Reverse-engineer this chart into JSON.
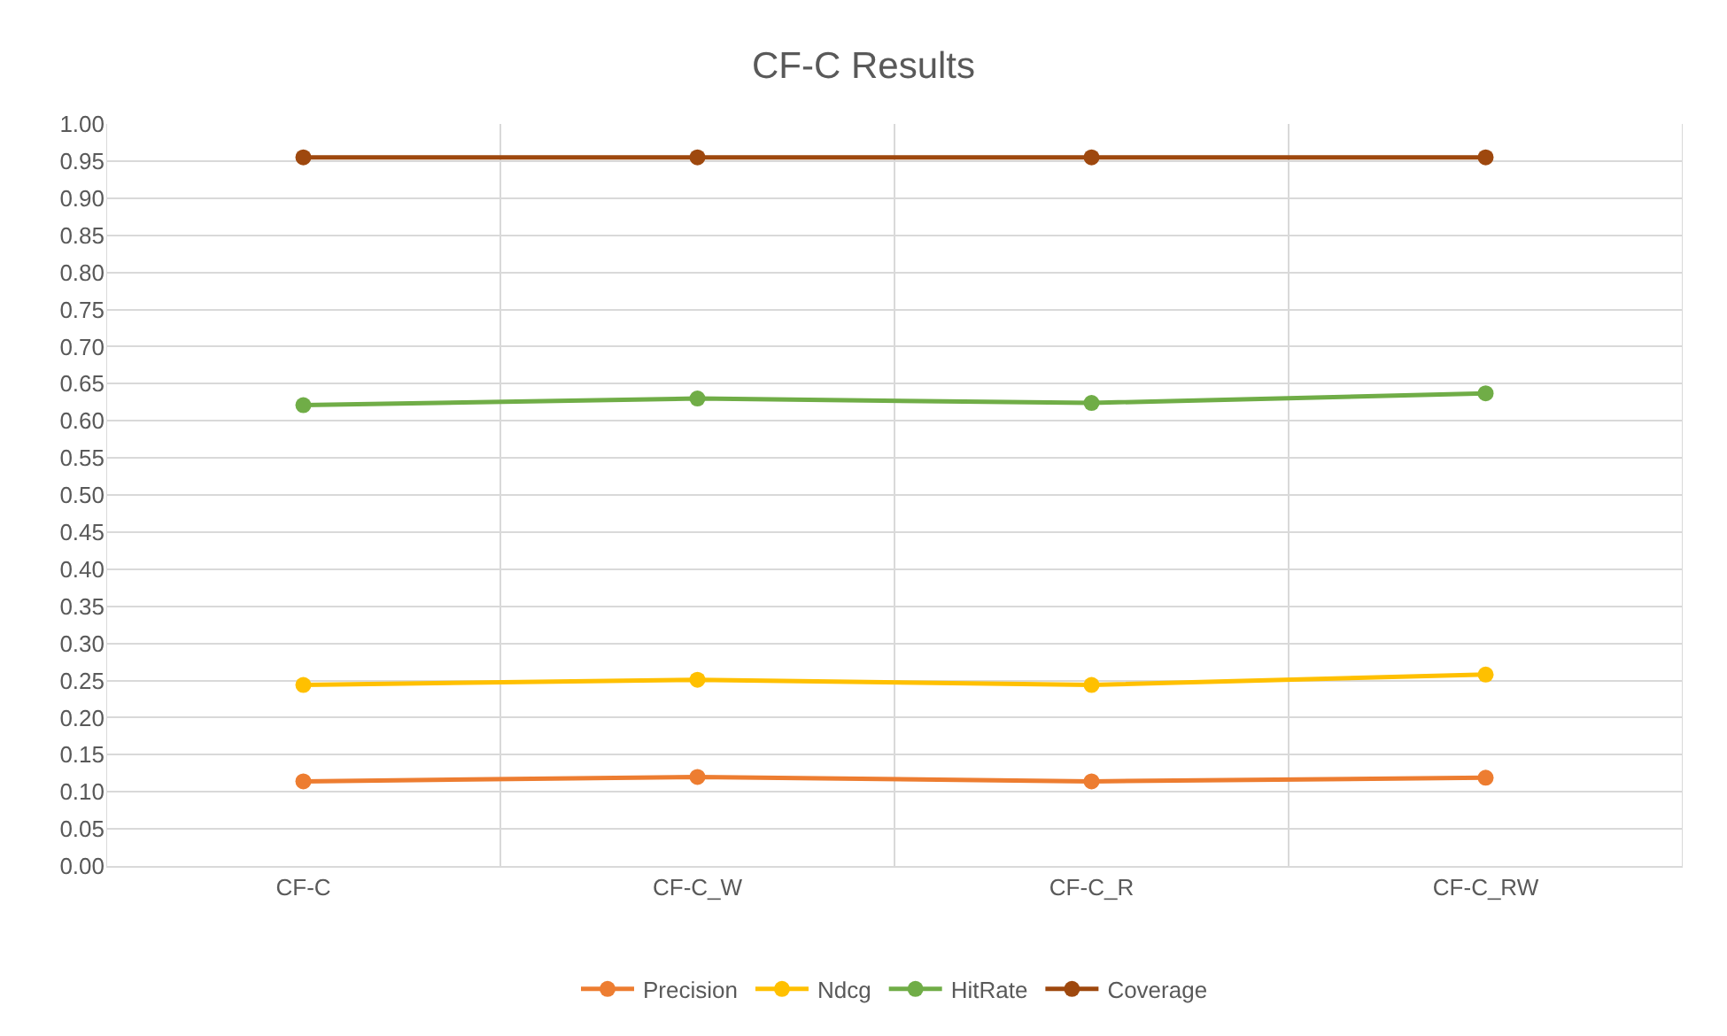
{
  "chart_data": {
    "type": "line",
    "title": "CF-C Results",
    "categories": [
      "CF-C",
      "CF-C_W",
      "CF-C_R",
      "CF-C_RW"
    ],
    "series": [
      {
        "name": "Precision",
        "color": "#ed7d31",
        "values": [
          0.114,
          0.12,
          0.114,
          0.119
        ]
      },
      {
        "name": "Ndcg",
        "color": "#ffc000",
        "values": [
          0.244,
          0.251,
          0.244,
          0.258
        ]
      },
      {
        "name": "HitRate",
        "color": "#70ad47",
        "values": [
          0.621,
          0.63,
          0.624,
          0.637
        ]
      },
      {
        "name": "Coverage",
        "color": "#9e480e",
        "values": [
          0.955,
          0.955,
          0.955,
          0.955
        ]
      }
    ],
    "ylim": [
      0,
      1
    ],
    "yticks": [
      {
        "value": 0,
        "label": "0.00"
      },
      0.05,
      {
        "value": 0.1,
        "label": "0.10"
      },
      0.15,
      {
        "value": 0.2,
        "label": "0.20"
      },
      0.25,
      {
        "value": 0.3,
        "label": "0.30"
      },
      0.35,
      {
        "value": 0.4,
        "label": "0.40"
      },
      0.45,
      {
        "value": 0.5,
        "label": "0.50"
      },
      0.55,
      {
        "value": 0.6,
        "label": "0.60"
      },
      0.65,
      {
        "value": 0.7,
        "label": "0.70"
      },
      0.75,
      {
        "value": 0.8,
        "label": "0.80"
      },
      0.85,
      {
        "value": 0.9,
        "label": "0.90"
      },
      0.95,
      {
        "value": 1,
        "label": "1.00"
      }
    ],
    "grid": true,
    "legend": "bottom",
    "marker": "circle",
    "line_style": "solid"
  }
}
